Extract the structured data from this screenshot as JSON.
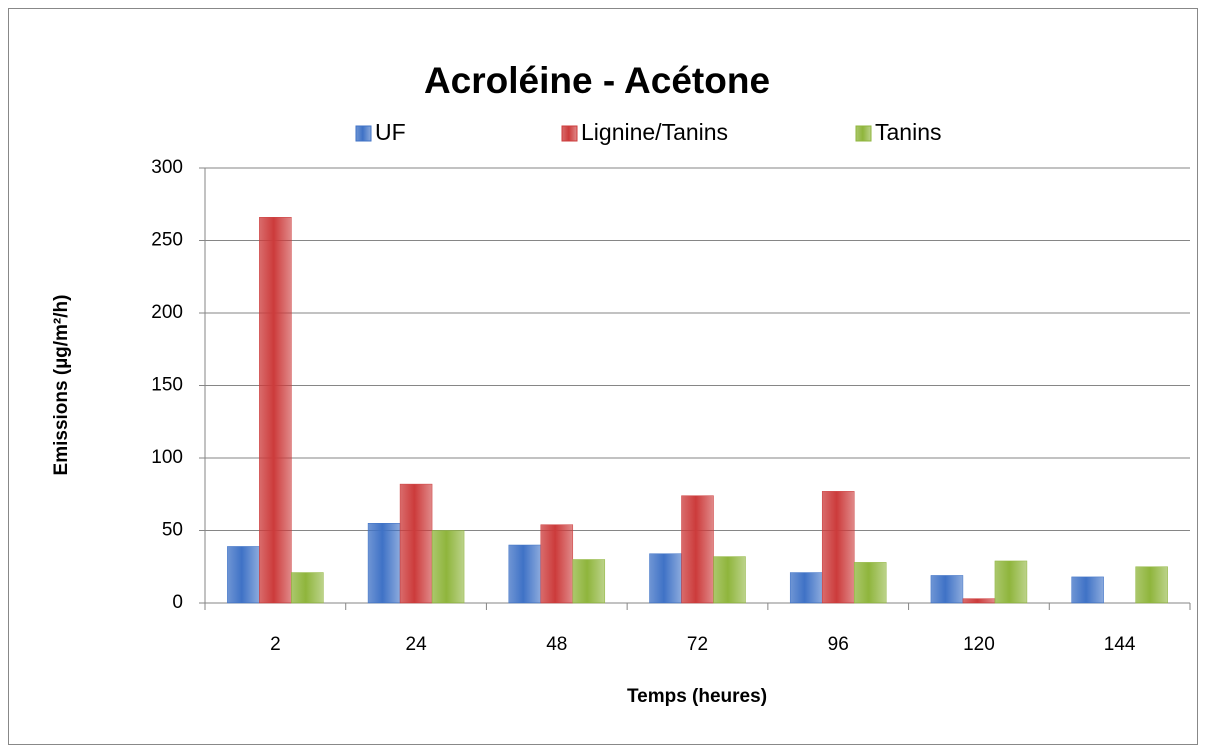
{
  "chart_data": {
    "type": "bar",
    "title": "Acroléine - Acétone",
    "x_label": "Temps (heures)",
    "y_label": "Emissions (µg/m²/h)",
    "categories": [
      "2",
      "24",
      "48",
      "72",
      "96",
      "120",
      "144"
    ],
    "series": [
      {
        "name": "UF",
        "color": "#3f72c6",
        "values": [
          39,
          55,
          40,
          34,
          21,
          19,
          18
        ]
      },
      {
        "name": "Lignine/Tanins",
        "color": "#cc3b3b",
        "values": [
          266,
          82,
          54,
          74,
          77,
          3,
          null
        ]
      },
      {
        "name": "Tanins",
        "color": "#8fb53c",
        "values": [
          21,
          50,
          30,
          32,
          28,
          29,
          25
        ]
      }
    ],
    "ylim": [
      0,
      300
    ],
    "yticks": [
      0,
      50,
      100,
      150,
      200,
      250,
      300
    ],
    "grid": true,
    "legend": "top"
  }
}
